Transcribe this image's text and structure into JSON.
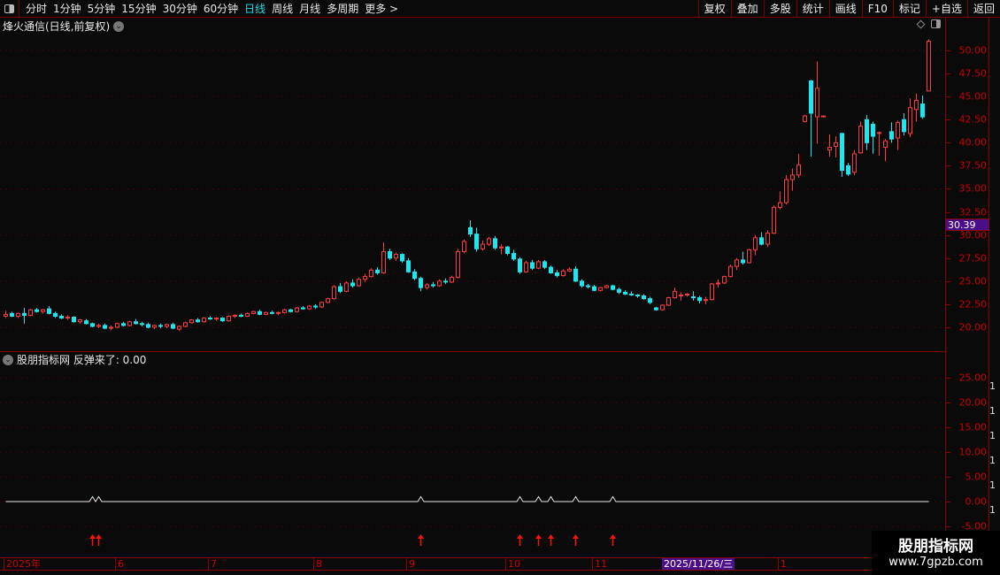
{
  "toolbar": {
    "periods": [
      "分时",
      "1分钟",
      "5分钟",
      "15分钟",
      "30分钟",
      "60分钟",
      "日线",
      "周线",
      "月线",
      "多周期",
      "更多 >"
    ],
    "active_period": "日线",
    "buttons": [
      "复权",
      "叠加",
      "多股",
      "统计",
      "画线",
      "F10",
      "标记",
      "+自选",
      "返回"
    ]
  },
  "chart_title": "烽火通信(日线,前复权)",
  "indicator_title": "股朋指标网 反弹来了: 0.00",
  "current_price_tag": "30.39",
  "crosshair_date": "2025/11/26/三",
  "watermark": {
    "name": "股朋指标网",
    "url": "www.7gpzb.com"
  },
  "side_column_glyphs": [
    "1",
    "1",
    "1",
    "1",
    "1",
    "1",
    "1",
    "1",
    "1"
  ],
  "colors": {
    "up": "#ff3b3b",
    "down": "#19e8f0",
    "axis": "#c80000",
    "grid": "#6a0000",
    "highlight": "#4a0e8a",
    "active_tab": "#19e0f0"
  },
  "chart_data": [
    {
      "type": "candlestick",
      "ylim": [
        18.5,
        52
      ],
      "yticks": [
        "50.00",
        "47.50",
        "45.00",
        "42.50",
        "40.00",
        "37.50",
        "35.00",
        "32.50",
        "30.00",
        "27.50",
        "25.00",
        "22.50",
        "20.00"
      ],
      "grid_levels": [
        50,
        45,
        40,
        35,
        30,
        25,
        20
      ],
      "x_tick_labels": [
        {
          "label": "2025年",
          "index": 0
        },
        {
          "label": "6",
          "index": 18
        },
        {
          "label": "7",
          "index": 33
        },
        {
          "label": "8",
          "index": 50
        },
        {
          "label": "9",
          "index": 65
        },
        {
          "label": "10",
          "index": 81
        },
        {
          "label": "11",
          "index": 95
        },
        {
          "label": "1",
          "index": 125
        }
      ],
      "ohlc": [
        [
          21.2,
          21.8,
          21.0,
          21.4
        ],
        [
          21.5,
          21.7,
          21.1,
          21.2
        ],
        [
          21.2,
          21.6,
          21.0,
          21.5
        ],
        [
          21.5,
          22.1,
          20.4,
          21.3
        ],
        [
          21.3,
          22.0,
          21.2,
          21.9
        ],
        [
          21.9,
          22.1,
          21.6,
          21.7
        ],
        [
          21.7,
          22.0,
          21.5,
          21.9
        ],
        [
          22.0,
          22.3,
          21.4,
          21.5
        ],
        [
          21.5,
          21.7,
          21.0,
          21.2
        ],
        [
          21.2,
          21.4,
          20.9,
          21.0
        ],
        [
          21.0,
          21.3,
          20.8,
          21.1
        ],
        [
          21.1,
          21.2,
          20.5,
          20.6
        ],
        [
          20.6,
          20.9,
          20.4,
          20.8
        ],
        [
          20.7,
          20.9,
          20.3,
          20.4
        ],
        [
          20.4,
          20.5,
          20.0,
          20.1
        ],
        [
          20.1,
          20.4,
          19.9,
          20.2
        ],
        [
          20.2,
          20.4,
          19.8,
          19.9
        ],
        [
          19.9,
          20.2,
          19.7,
          20.0
        ],
        [
          20.0,
          20.5,
          19.9,
          20.4
        ],
        [
          20.4,
          20.6,
          20.1,
          20.2
        ],
        [
          20.2,
          20.7,
          20.1,
          20.6
        ],
        [
          20.6,
          20.9,
          20.3,
          20.4
        ],
        [
          20.4,
          20.6,
          20.1,
          20.3
        ],
        [
          20.3,
          20.5,
          19.9,
          20.0
        ],
        [
          20.0,
          20.3,
          19.8,
          20.2
        ],
        [
          20.2,
          20.4,
          19.9,
          20.1
        ],
        [
          20.1,
          20.4,
          19.9,
          20.3
        ],
        [
          20.3,
          20.5,
          19.8,
          19.9
        ],
        [
          19.8,
          20.2,
          19.6,
          20.1
        ],
        [
          20.1,
          20.6,
          20.0,
          20.5
        ],
        [
          20.5,
          20.9,
          20.4,
          20.8
        ],
        [
          20.8,
          21.0,
          20.5,
          20.6
        ],
        [
          20.6,
          21.1,
          20.5,
          21.0
        ],
        [
          21.0,
          21.2,
          20.8,
          20.9
        ],
        [
          20.9,
          21.1,
          20.7,
          21.0
        ],
        [
          21.0,
          21.1,
          20.6,
          20.7
        ],
        [
          20.7,
          21.3,
          20.6,
          21.2
        ],
        [
          21.2,
          21.4,
          21.0,
          21.3
        ],
        [
          21.3,
          21.5,
          21.1,
          21.2
        ],
        [
          21.2,
          21.6,
          21.1,
          21.5
        ],
        [
          21.5,
          21.8,
          21.4,
          21.7
        ],
        [
          21.7,
          21.9,
          21.3,
          21.4
        ],
        [
          21.4,
          21.7,
          21.3,
          21.6
        ],
        [
          21.6,
          21.8,
          21.4,
          21.5
        ],
        [
          21.5,
          21.7,
          21.3,
          21.6
        ],
        [
          21.6,
          22.0,
          21.5,
          21.9
        ],
        [
          21.9,
          22.0,
          21.6,
          21.7
        ],
        [
          21.7,
          22.2,
          21.6,
          22.1
        ],
        [
          22.1,
          22.3,
          21.9,
          22.0
        ],
        [
          22.0,
          22.4,
          21.9,
          22.3
        ],
        [
          22.3,
          22.5,
          22.0,
          22.2
        ],
        [
          22.2,
          22.8,
          22.1,
          22.7
        ],
        [
          22.7,
          23.2,
          22.6,
          23.1
        ],
        [
          23.1,
          24.6,
          23.0,
          24.4
        ],
        [
          24.4,
          24.8,
          23.7,
          23.9
        ],
        [
          23.9,
          25.0,
          23.8,
          24.8
        ],
        [
          24.8,
          25.2,
          24.3,
          24.5
        ],
        [
          24.5,
          25.4,
          24.4,
          25.2
        ],
        [
          25.2,
          25.8,
          24.9,
          25.5
        ],
        [
          25.5,
          26.4,
          25.4,
          26.2
        ],
        [
          26.2,
          26.5,
          25.7,
          25.9
        ],
        [
          25.9,
          29.2,
          25.8,
          28.2
        ],
        [
          28.2,
          28.5,
          27.3,
          27.5
        ],
        [
          27.5,
          28.1,
          27.2,
          27.9
        ],
        [
          27.9,
          28.0,
          27.0,
          27.2
        ],
        [
          27.2,
          27.5,
          25.9,
          26.0
        ],
        [
          26.0,
          26.3,
          25.1,
          25.3
        ],
        [
          25.3,
          25.5,
          23.9,
          24.3
        ],
        [
          24.3,
          24.8,
          24.1,
          24.6
        ],
        [
          24.6,
          24.9,
          24.3,
          24.5
        ],
        [
          24.5,
          25.2,
          24.4,
          25.0
        ],
        [
          25.0,
          25.3,
          24.7,
          24.9
        ],
        [
          24.9,
          25.6,
          24.8,
          25.4
        ],
        [
          25.4,
          28.5,
          25.3,
          28.2
        ],
        [
          28.2,
          29.5,
          28.0,
          29.3
        ],
        [
          30.8,
          31.6,
          29.8,
          30.1
        ],
        [
          30.1,
          30.8,
          28.2,
          28.5
        ],
        [
          28.5,
          29.4,
          28.3,
          29.0
        ],
        [
          29.0,
          29.8,
          28.8,
          29.6
        ],
        [
          29.6,
          29.9,
          28.4,
          28.6
        ],
        [
          28.6,
          29.0,
          27.9,
          28.7
        ],
        [
          28.7,
          28.8,
          27.8,
          28.0
        ],
        [
          28.0,
          28.4,
          27.2,
          27.4
        ],
        [
          27.4,
          27.6,
          25.8,
          26.0
        ],
        [
          26.0,
          27.2,
          25.9,
          27.0
        ],
        [
          27.0,
          27.3,
          26.2,
          26.4
        ],
        [
          26.4,
          27.3,
          26.3,
          27.1
        ],
        [
          27.1,
          27.3,
          26.3,
          26.5
        ],
        [
          26.5,
          26.7,
          25.8,
          25.9
        ],
        [
          25.9,
          26.2,
          25.4,
          25.6
        ],
        [
          25.6,
          26.3,
          25.5,
          26.1
        ],
        [
          26.1,
          26.5,
          26.0,
          26.3
        ],
        [
          26.3,
          26.6,
          24.9,
          25.0
        ],
        [
          25.0,
          25.2,
          24.3,
          24.5
        ],
        [
          24.5,
          24.7,
          24.2,
          24.4
        ],
        [
          24.4,
          24.6,
          23.9,
          24.0
        ],
        [
          24.0,
          24.4,
          23.9,
          24.3
        ],
        [
          24.3,
          24.6,
          24.2,
          24.5
        ],
        [
          24.5,
          24.6,
          24.0,
          24.1
        ],
        [
          24.1,
          24.3,
          23.6,
          23.8
        ],
        [
          23.8,
          24.0,
          23.5,
          23.6
        ],
        [
          23.6,
          23.9,
          23.4,
          23.5
        ],
        [
          23.5,
          23.6,
          23.2,
          23.4
        ],
        [
          23.4,
          23.6,
          23.0,
          23.1
        ],
        [
          23.1,
          23.3,
          22.5,
          22.7
        ],
        [
          22.1,
          22.2,
          21.8,
          21.9
        ],
        [
          21.9,
          22.5,
          21.8,
          22.4
        ],
        [
          22.4,
          23.3,
          22.3,
          23.2
        ],
        [
          23.2,
          24.3,
          23.1,
          23.9
        ],
        [
          23.5,
          23.8,
          22.9,
          23.5
        ],
        [
          23.5,
          23.7,
          23.3,
          23.6
        ],
        [
          23.3,
          23.9,
          22.9,
          23.2
        ],
        [
          23.2,
          23.4,
          22.6,
          22.9
        ],
        [
          22.9,
          23.3,
          22.5,
          23.0
        ],
        [
          23.0,
          24.8,
          22.9,
          24.7
        ],
        [
          24.7,
          25.2,
          24.3,
          24.8
        ],
        [
          24.8,
          25.6,
          24.7,
          25.5
        ],
        [
          25.5,
          26.8,
          25.4,
          26.6
        ],
        [
          26.6,
          27.5,
          26.2,
          27.3
        ],
        [
          27.3,
          28.2,
          26.8,
          27.0
        ],
        [
          27.0,
          28.5,
          26.9,
          28.4
        ],
        [
          28.4,
          30.0,
          27.8,
          29.7
        ],
        [
          29.7,
          30.3,
          28.9,
          29.0
        ],
        [
          29.0,
          30.5,
          28.7,
          30.2
        ],
        [
          30.2,
          33.2,
          30.1,
          33.0
        ],
        [
          33.0,
          34.7,
          32.8,
          33.5
        ],
        [
          33.5,
          36.5,
          33.3,
          36.0
        ],
        [
          36.0,
          37.2,
          34.8,
          36.5
        ],
        [
          36.5,
          38.8,
          36.2,
          37.6
        ],
        [
          42.3,
          43.0,
          42.2,
          42.9
        ],
        [
          46.7,
          46.8,
          38.5,
          43.2
        ],
        [
          42.8,
          48.8,
          39.9,
          45.9
        ],
        [
          42.9,
          42.9,
          42.9,
          42.9
        ],
        [
          39.2,
          40.9,
          38.5,
          39.5
        ],
        [
          39.6,
          40.7,
          38.4,
          40.0
        ],
        [
          41.0,
          41.1,
          36.3,
          37.0
        ],
        [
          37.5,
          37.8,
          36.4,
          36.6
        ],
        [
          36.8,
          39.2,
          36.5,
          38.8
        ],
        [
          38.9,
          42.3,
          38.8,
          41.8
        ],
        [
          42.5,
          43.0,
          39.2,
          40.0
        ],
        [
          42.0,
          42.3,
          38.8,
          40.7
        ],
        [
          41.0,
          41.2,
          38.6,
          41.1
        ],
        [
          39.5,
          40.4,
          38.0,
          40.2
        ],
        [
          41.2,
          42.2,
          40.0,
          40.4
        ],
        [
          40.5,
          42.4,
          39.2,
          42.2
        ],
        [
          42.5,
          43.2,
          40.8,
          41.2
        ],
        [
          41.0,
          44.8,
          40.6,
          43.8
        ],
        [
          43.6,
          45.3,
          42.3,
          44.6
        ],
        [
          44.2,
          45.1,
          42.6,
          42.8
        ],
        [
          45.6,
          51.2,
          45.6,
          51.0
        ]
      ]
    },
    {
      "type": "line",
      "name": "反弹来了",
      "ylim": [
        -6,
        28
      ],
      "yticks": [
        "25.00",
        "20.00",
        "15.00",
        "10.00",
        "5.00",
        "0.00",
        "-5.00"
      ],
      "grid_levels": [
        25,
        20,
        15,
        10,
        5,
        0,
        -5
      ],
      "baseline_value": 0,
      "signal_value": 1,
      "signal_indices": [
        14,
        15,
        67,
        83,
        86,
        88,
        92,
        98
      ]
    }
  ]
}
